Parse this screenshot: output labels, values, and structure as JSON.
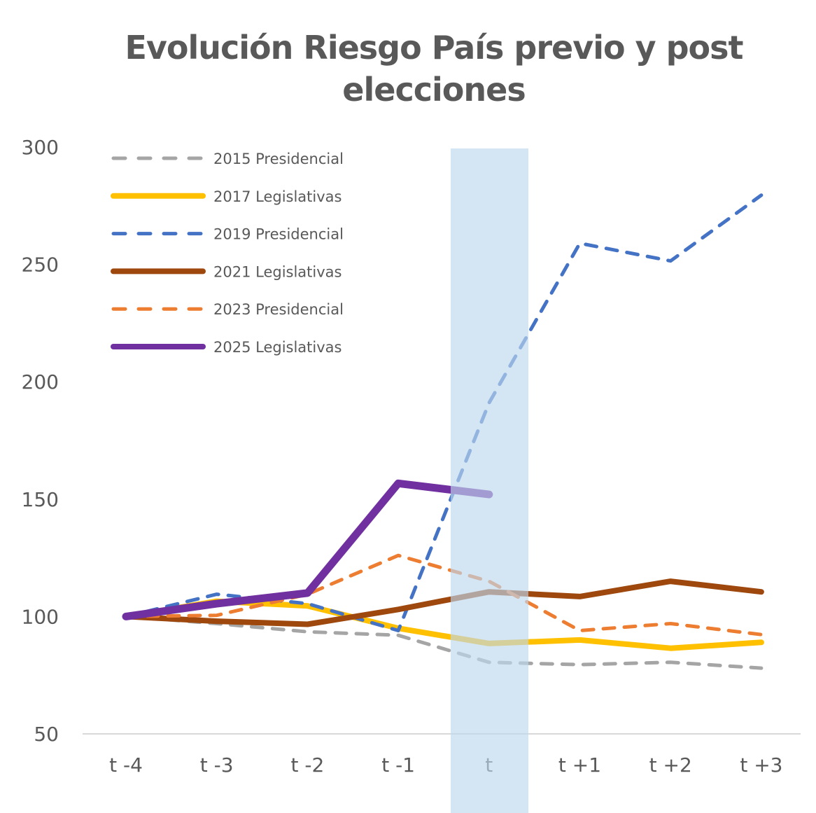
{
  "chart_data": {
    "type": "line",
    "title": "Evolución Riesgo País previo y post elecciones",
    "xlabel": "",
    "ylabel": "",
    "categories": [
      "t -4",
      "t -3",
      "t -2",
      "t -1",
      "t",
      "t +1",
      "t +2",
      "t +3"
    ],
    "ylim": [
      50,
      300
    ],
    "yticks": [
      50,
      100,
      150,
      200,
      250,
      300
    ],
    "grid": false,
    "legend_position": "top-left",
    "highlight_category": "t",
    "highlight_color": "#BDD7EE",
    "series": [
      {
        "name": "2015 Presidencial",
        "color": "#A5A5A5",
        "dashed": true,
        "values": [
          100,
          97,
          93.5,
          92,
          80.5,
          79.5,
          80.5,
          78
        ]
      },
      {
        "name": "2017 Legislativas",
        "color": "#FFC000",
        "dashed": false,
        "values": [
          100,
          106.5,
          104.5,
          95,
          88.5,
          90,
          86.5,
          89
        ]
      },
      {
        "name": "2019 Presidencial",
        "color": "#4472C4",
        "dashed": true,
        "values": [
          100,
          109.5,
          105.5,
          94,
          191,
          259,
          251.5,
          279.5
        ]
      },
      {
        "name": "2021 Legislativas",
        "color": "#9E480E",
        "dashed": false,
        "values": [
          100,
          98,
          96.7,
          103,
          110.5,
          108.5,
          115,
          110.5
        ]
      },
      {
        "name": "2023 Presidencial",
        "color": "#ED7D31",
        "dashed": true,
        "values": [
          100,
          100.5,
          109.5,
          126,
          115,
          94,
          97,
          92.3
        ]
      },
      {
        "name": "2025 Legislativas",
        "color": "#7030A0",
        "dashed": false,
        "values": [
          100,
          105.5,
          110,
          156.7,
          152,
          null,
          null,
          null
        ]
      }
    ]
  }
}
